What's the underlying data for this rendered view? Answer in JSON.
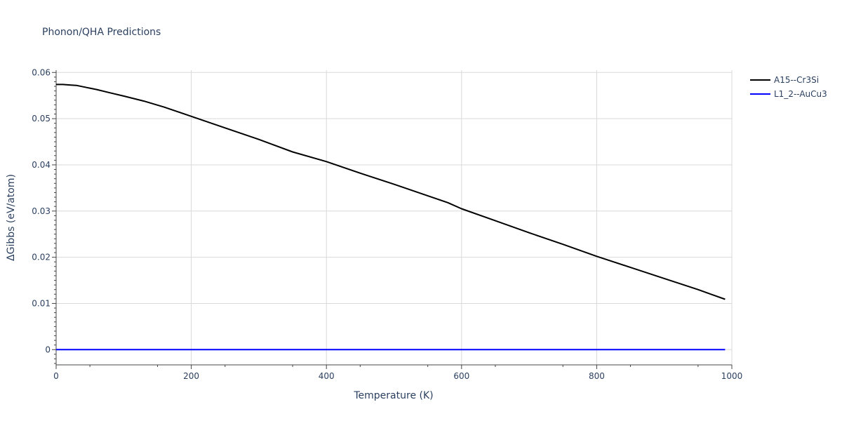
{
  "chart_data": {
    "type": "line",
    "title": "Phonon/QHA Predictions",
    "xlabel": "Temperature (K)",
    "ylabel": "ΔGibbs (eV/atom)",
    "xlim": [
      0,
      1000
    ],
    "ylim": [
      -0.0033,
      0.0605
    ],
    "x_ticks": [
      0,
      200,
      400,
      600,
      800,
      1000
    ],
    "x_tick_labels": [
      "0",
      "200",
      "400",
      "600",
      "800",
      "1000"
    ],
    "y_ticks": [
      0,
      0.01,
      0.02,
      0.03,
      0.04,
      0.05,
      0.06
    ],
    "y_tick_labels": [
      "0",
      "0.01",
      "0.02",
      "0.03",
      "0.04",
      "0.05",
      "0.06"
    ],
    "grid": true,
    "legend_position": "top-right",
    "series": [
      {
        "name": "A15--Cr3Si",
        "color": "#000000",
        "x": [
          0,
          10,
          20,
          30,
          40,
          60,
          80,
          100,
          130,
          160,
          200,
          250,
          300,
          350,
          400,
          450,
          500,
          550,
          580,
          600,
          650,
          700,
          750,
          800,
          850,
          900,
          950,
          990
        ],
        "y": [
          0.0574,
          0.0574,
          0.0573,
          0.0572,
          0.0569,
          0.0563,
          0.0556,
          0.0549,
          0.0538,
          0.0525,
          0.0505,
          0.048,
          0.0455,
          0.0428,
          0.0407,
          0.0382,
          0.0358,
          0.0333,
          0.0318,
          0.0305,
          0.0279,
          0.0253,
          0.0228,
          0.0202,
          0.0178,
          0.0154,
          0.013,
          0.0109
        ]
      },
      {
        "name": "L1_2--AuCu3",
        "color": "#0000ff",
        "x": [
          0,
          990
        ],
        "y": [
          0,
          0
        ]
      }
    ]
  }
}
